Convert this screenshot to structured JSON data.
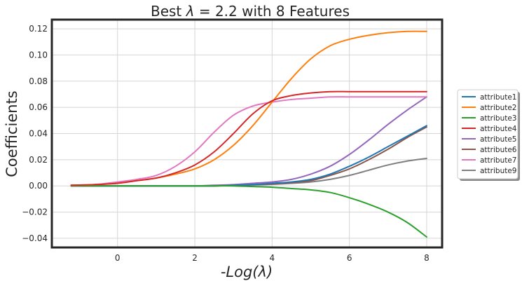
{
  "chart_data": {
    "type": "line",
    "title_parts": {
      "prefix": "Best ",
      "symbol": "λ",
      "suffix": " = 2.2 with 8 Features"
    },
    "xlabel_parts": {
      "prefix": "-Log(",
      "symbol": "λ",
      "suffix": ")"
    },
    "ylabel": "Coefficients",
    "xlim": [
      -1.7,
      8.4
    ],
    "ylim": [
      -0.047,
      0.127
    ],
    "xticks": [
      0,
      2,
      4,
      6,
      8
    ],
    "yticks": [
      -0.04,
      -0.02,
      0.0,
      0.02,
      0.04,
      0.06,
      0.08,
      0.1,
      0.12
    ],
    "ytick_labels": [
      "−0.04",
      "−0.02",
      "0.00",
      "0.02",
      "0.04",
      "0.06",
      "0.08",
      "0.10",
      "0.12"
    ],
    "grid": true,
    "legend_position": "right-outside",
    "x": [
      -1.2,
      -0.6,
      0,
      0.5,
      1,
      1.5,
      2,
      2.5,
      3,
      3.5,
      4,
      4.5,
      5,
      5.5,
      6,
      6.5,
      7,
      7.5,
      8
    ],
    "series": [
      {
        "name": "attribute1",
        "color": "#1f77b4",
        "values": [
          0,
          0,
          0,
          0,
          0,
          0,
          0,
          0,
          0.0005,
          0.001,
          0.002,
          0.003,
          0.005,
          0.009,
          0.015,
          0.022,
          0.03,
          0.038,
          0.046
        ]
      },
      {
        "name": "attribute2",
        "color": "#ff7f0e",
        "values": [
          0.0005,
          0.001,
          0.002,
          0.004,
          0.006,
          0.009,
          0.013,
          0.02,
          0.031,
          0.046,
          0.064,
          0.082,
          0.097,
          0.107,
          0.112,
          0.115,
          0.117,
          0.118,
          0.118
        ]
      },
      {
        "name": "attribute3",
        "color": "#2ca02c",
        "values": [
          0,
          0,
          0,
          0,
          0,
          0,
          0,
          0,
          0,
          -0.0005,
          -0.001,
          -0.002,
          -0.003,
          -0.005,
          -0.009,
          -0.014,
          -0.02,
          -0.028,
          -0.039
        ]
      },
      {
        "name": "attribute4",
        "color": "#d62728",
        "values": [
          0.0005,
          0.001,
          0.002,
          0.004,
          0.006,
          0.01,
          0.016,
          0.026,
          0.04,
          0.055,
          0.065,
          0.069,
          0.071,
          0.072,
          0.072,
          0.072,
          0.072,
          0.072,
          0.072
        ]
      },
      {
        "name": "attribute5",
        "color": "#9467bd",
        "values": [
          0,
          0,
          0,
          0,
          0,
          0,
          0,
          0.0005,
          0.001,
          0.002,
          0.003,
          0.005,
          0.009,
          0.015,
          0.024,
          0.035,
          0.047,
          0.058,
          0.068
        ]
      },
      {
        "name": "attribute6",
        "color": "#8c564b",
        "values": [
          0,
          0,
          0,
          0,
          0,
          0,
          0,
          0,
          0.0005,
          0.001,
          0.0015,
          0.0025,
          0.004,
          0.008,
          0.013,
          0.02,
          0.028,
          0.037,
          0.045
        ]
      },
      {
        "name": "attribute7",
        "color": "#e377c2",
        "values": [
          0.0005,
          0.001,
          0.003,
          0.005,
          0.008,
          0.015,
          0.026,
          0.041,
          0.054,
          0.061,
          0.064,
          0.066,
          0.067,
          0.068,
          0.068,
          0.068,
          0.068,
          0.068,
          0.068
        ]
      },
      {
        "name": "attribute9",
        "color": "#7f7f7f",
        "values": [
          0,
          0,
          0,
          0,
          0,
          0,
          0,
          0,
          0.0003,
          0.0007,
          0.0012,
          0.002,
          0.003,
          0.005,
          0.008,
          0.012,
          0.016,
          0.019,
          0.021
        ]
      }
    ]
  }
}
